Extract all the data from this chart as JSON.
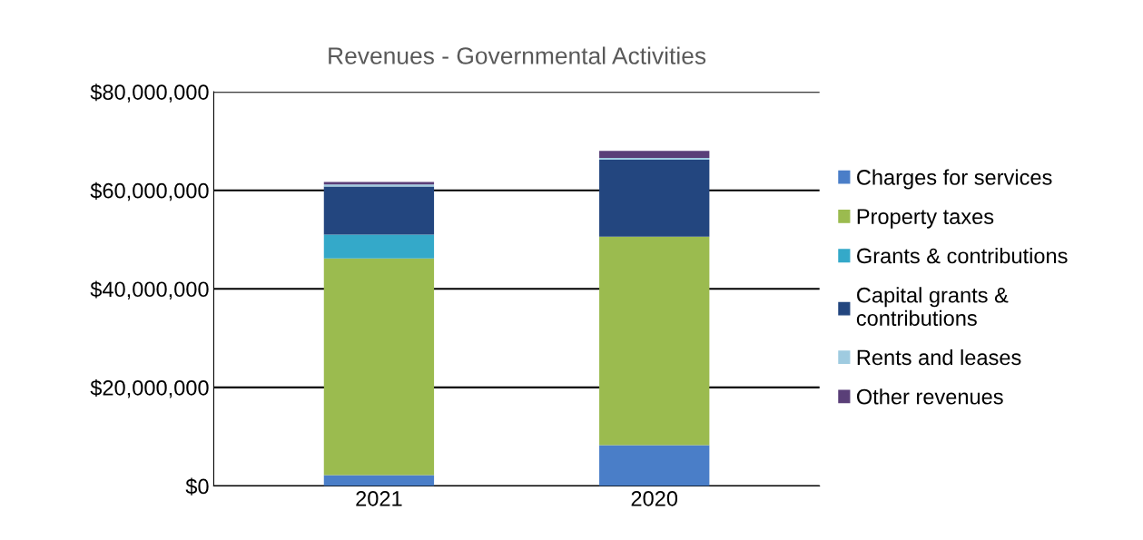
{
  "chart_data": {
    "type": "bar",
    "title": "Revenues - Governmental Activities",
    "stacked": true,
    "categories": [
      "2021",
      "2020"
    ],
    "ylim": [
      0,
      80000000
    ],
    "yticks": [
      {
        "value": 0,
        "label": "$0"
      },
      {
        "value": 20000000,
        "label": "$20,000,000"
      },
      {
        "value": 40000000,
        "label": "$40,000,000"
      },
      {
        "value": 60000000,
        "label": "$60,000,000"
      },
      {
        "value": 80000000,
        "label": "$80,000,000"
      }
    ],
    "grid": "y",
    "legend": "right",
    "series": [
      {
        "name": "Charges for services",
        "color": "#4a7ec8",
        "values": [
          2200000,
          8300000
        ]
      },
      {
        "name": "Property taxes",
        "color": "#9bbb4f",
        "values": [
          44000000,
          42300000
        ]
      },
      {
        "name": "Grants & contributions",
        "color": "#34a9c9",
        "values": [
          4800000,
          0
        ]
      },
      {
        "name": "Capital grants & contributions",
        "color": "#23467f",
        "values": [
          9800000,
          15600000
        ]
      },
      {
        "name": "Rents and leases",
        "color": "#9fcbe0",
        "values": [
          400000,
          400000
        ]
      },
      {
        "name": "Other revenues",
        "color": "#5a3f78",
        "values": [
          500000,
          1400000
        ]
      }
    ]
  }
}
